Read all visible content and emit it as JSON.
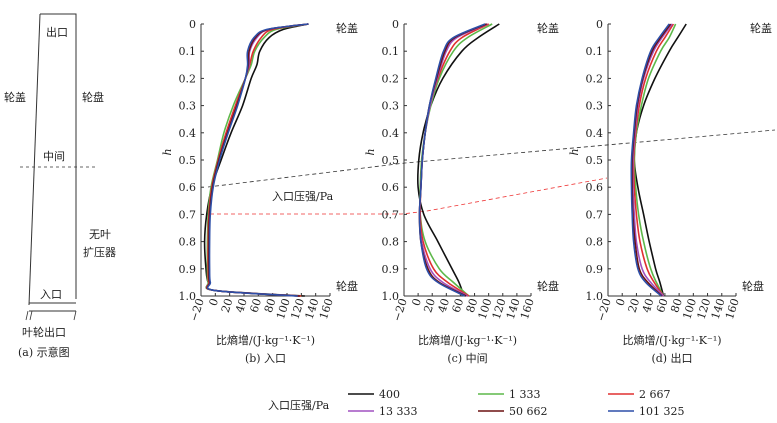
{
  "schematic": {
    "caption": "(a) 示意图",
    "labels": {
      "outlet": "出口",
      "shroud": "轮盖",
      "hub": "轮盘",
      "middle": "中间",
      "vaneless_line1": "无叶",
      "vaneless_line2": "扩压器",
      "inlet": "入口",
      "impeller_outlet": "叶轮出口"
    }
  },
  "annotation": "入口压强/Pa",
  "colors": {
    "400": "#111111",
    "1333": "#5db84a",
    "2667": "#e03030",
    "13333": "#a050c0",
    "50662": "#6b1010",
    "101325": "#2d4fa8",
    "guide_black": "#333333",
    "guide_red": "#ee3333"
  },
  "legend": {
    "title": "入口压强/Pa",
    "items": [
      {
        "label": "400",
        "key": "400"
      },
      {
        "label": "1 333",
        "key": "1333"
      },
      {
        "label": "2 667",
        "key": "2667"
      },
      {
        "label": "13 333",
        "key": "13333"
      },
      {
        "label": "50 662",
        "key": "50662"
      },
      {
        "label": "101 325",
        "key": "101325"
      }
    ]
  },
  "chart_data": [
    {
      "type": "line",
      "title": "(b) 入口",
      "xlabel": "比熵增/(J·kg⁻¹·K⁻¹)",
      "ylabel": "h",
      "xlim": [
        -20,
        160
      ],
      "ylim": [
        1.0,
        0
      ],
      "xticks": [
        "-20",
        "0",
        "20",
        "40",
        "60",
        "80",
        "100",
        "120",
        "140",
        "160"
      ],
      "yticks": [
        "0",
        "0.1",
        "0.2",
        "0.3",
        "0.4",
        "0.5",
        "0.6",
        "0.7",
        "0.8",
        "0.9",
        "1.0"
      ],
      "top_label": "轮盖",
      "bottom_label": "轮盘",
      "y": [
        0,
        0.02,
        0.05,
        0.1,
        0.15,
        0.2,
        0.3,
        0.4,
        0.5,
        0.6,
        0.7,
        0.8,
        0.9,
        0.95,
        0.98,
        1.0
      ],
      "series": [
        {
          "name": "400",
          "x": [
            130,
            95,
            75,
            62,
            58,
            50,
            38,
            22,
            8,
            -5,
            -12,
            -15,
            -13,
            -10,
            0,
            125
          ]
        },
        {
          "name": "1 333",
          "x": [
            130,
            85,
            68,
            55,
            50,
            42,
            25,
            12,
            3,
            -6,
            -10,
            -11,
            -11,
            -10,
            0,
            120
          ]
        },
        {
          "name": "2 667",
          "x": [
            130,
            80,
            64,
            53,
            48,
            42,
            28,
            15,
            4,
            -5,
            -9,
            -10,
            -10,
            -9,
            0,
            120
          ]
        },
        {
          "name": "13 333",
          "x": [
            130,
            75,
            58,
            48,
            47,
            42,
            30,
            17,
            5,
            -4,
            -8,
            -9,
            -9,
            -8,
            0,
            118
          ]
        },
        {
          "name": "50 662",
          "x": [
            130,
            74,
            56,
            47,
            46,
            42,
            30,
            17,
            5,
            -4,
            -8,
            -9,
            -9,
            -8,
            0,
            118
          ]
        },
        {
          "name": "101 325",
          "x": [
            130,
            72,
            54,
            45,
            45,
            42,
            31,
            18,
            6,
            -3,
            -7,
            -8,
            -8,
            -7,
            0,
            115
          ]
        }
      ]
    },
    {
      "type": "line",
      "title": "(c) 中间",
      "xlabel": "比熵增/(J·kg⁻¹·K⁻¹)",
      "ylabel": "h",
      "xlim": [
        -20,
        160
      ],
      "ylim": [
        1.0,
        0
      ],
      "xticks": [
        "-20",
        "0",
        "20",
        "40",
        "60",
        "80",
        "100",
        "120",
        "140",
        "160"
      ],
      "yticks": [
        "0",
        "0.1",
        "0.2",
        "0.3",
        "0.4",
        "0.5",
        "0.6",
        "0.7",
        "0.8",
        "0.9",
        "1.0"
      ],
      "top_label": "轮盖",
      "bottom_label": "轮盘",
      "y": [
        0,
        0.05,
        0.1,
        0.2,
        0.3,
        0.4,
        0.5,
        0.6,
        0.7,
        0.8,
        0.9,
        0.95,
        1.0
      ],
      "series": [
        {
          "name": "400",
          "x": [
            115,
            85,
            62,
            35,
            18,
            7,
            1,
            0,
            8,
            28,
            48,
            58,
            65
          ]
        },
        {
          "name": "1 333",
          "x": [
            105,
            70,
            50,
            30,
            18,
            10,
            5,
            3,
            3,
            10,
            30,
            50,
            72
          ]
        },
        {
          "name": "2 667",
          "x": [
            100,
            62,
            45,
            28,
            17,
            10,
            6,
            4,
            3,
            7,
            22,
            42,
            72
          ]
        },
        {
          "name": "13 333",
          "x": [
            98,
            55,
            40,
            27,
            17,
            10,
            6,
            4,
            2,
            5,
            17,
            35,
            70
          ]
        },
        {
          "name": "50 662",
          "x": [
            97,
            52,
            38,
            26,
            16,
            10,
            6,
            4,
            2,
            4,
            14,
            30,
            68
          ]
        },
        {
          "name": "101 325",
          "x": [
            95,
            50,
            36,
            25,
            16,
            10,
            6,
            4,
            2,
            4,
            12,
            28,
            66
          ]
        }
      ]
    },
    {
      "type": "line",
      "title": "(d) 出口",
      "xlabel": "比熵增/(J·kg⁻¹·K⁻¹)",
      "ylabel": "h",
      "xlim": [
        -20,
        160
      ],
      "ylim": [
        1.0,
        0
      ],
      "xticks": [
        "-20",
        "0",
        "20",
        "40",
        "60",
        "80",
        "100",
        "120",
        "140",
        "160"
      ],
      "yticks": [
        "0",
        "0.1",
        "0.2",
        "0.3",
        "0.4",
        "0.5",
        "0.6",
        "0.7",
        "0.8",
        "0.9",
        "1.0"
      ],
      "top_label": "轮盖",
      "bottom_label": "轮盘",
      "y": [
        0,
        0.05,
        0.1,
        0.2,
        0.3,
        0.4,
        0.5,
        0.6,
        0.7,
        0.8,
        0.9,
        0.95,
        1.0
      ],
      "series": [
        {
          "name": "400",
          "x": [
            90,
            78,
            66,
            46,
            30,
            20,
            17,
            22,
            30,
            38,
            47,
            53,
            58
          ]
        },
        {
          "name": "1 333",
          "x": [
            75,
            66,
            54,
            37,
            27,
            20,
            17,
            19,
            23,
            30,
            40,
            48,
            58
          ]
        },
        {
          "name": "2 667",
          "x": [
            72,
            60,
            48,
            33,
            24,
            19,
            16,
            17,
            20,
            25,
            35,
            45,
            58
          ]
        },
        {
          "name": "13 333",
          "x": [
            70,
            56,
            44,
            30,
            22,
            18,
            15,
            15,
            17,
            20,
            28,
            40,
            58
          ]
        },
        {
          "name": "50 662",
          "x": [
            68,
            54,
            42,
            29,
            21,
            17,
            14,
            14,
            15,
            18,
            24,
            36,
            56
          ]
        },
        {
          "name": "101 325",
          "x": [
            66,
            52,
            40,
            28,
            20,
            16,
            13,
            13,
            14,
            16,
            22,
            33,
            55
          ]
        }
      ]
    }
  ]
}
